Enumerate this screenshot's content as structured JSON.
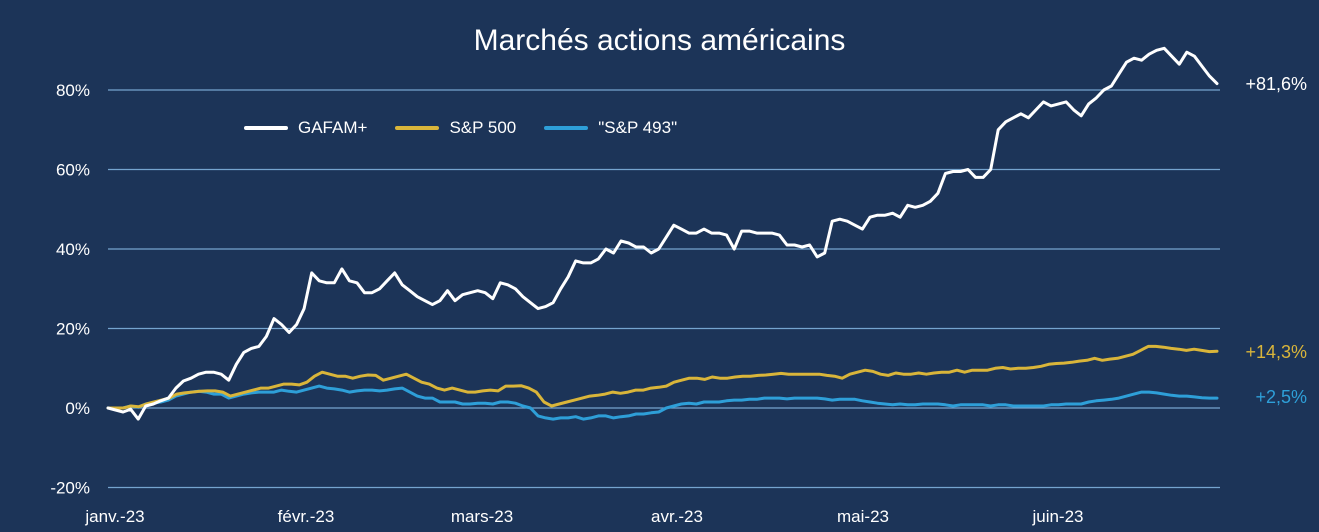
{
  "chart_data": {
    "type": "line",
    "title": "Marchés actions américains",
    "x_tick_labels": [
      "janv.-23",
      "févr.-23",
      "mars-23",
      "avr.-23",
      "mai-23",
      "juin-23"
    ],
    "y_tick_labels": [
      "-20%",
      "0%",
      "20%",
      "40%",
      "60%",
      "80%"
    ],
    "y_ticks": [
      -20,
      0,
      20,
      40,
      60,
      80
    ],
    "ylim": [
      -20,
      88
    ],
    "grid": true,
    "legend_position": "top-left",
    "series": [
      {
        "name": "GAFAM+",
        "color": "#ffffff",
        "end_label": "+81,6%",
        "values": [
          0,
          -0.5,
          -1,
          -0.3,
          -2.8,
          0.5,
          1,
          1.8,
          2.5,
          5,
          6.8,
          7.5,
          8.5,
          9,
          9,
          8.5,
          7,
          11,
          14,
          15,
          15.5,
          18,
          22.5,
          21,
          19,
          21,
          25,
          34,
          32,
          31.5,
          31.5,
          35,
          32,
          31.5,
          29,
          29,
          30,
          32,
          34,
          31,
          29.5,
          28,
          27,
          26,
          27,
          29.5,
          27,
          28.5,
          29,
          29.5,
          29,
          27.5,
          31.5,
          31,
          30,
          28,
          26.5,
          25,
          25.5,
          26.5,
          30,
          33,
          37,
          36.5,
          36.5,
          37.5,
          40,
          39,
          42,
          41.5,
          40.5,
          40.5,
          39,
          40,
          43,
          46,
          45,
          44,
          44,
          45,
          44,
          44,
          43.5,
          40,
          44.5,
          44.5,
          44,
          44,
          44,
          43.5,
          41,
          41,
          40.5,
          41,
          38,
          39,
          47,
          47.5,
          47,
          46,
          45,
          48,
          48.5,
          48.5,
          49,
          48,
          51,
          50.5,
          51,
          52,
          54,
          59,
          59.5,
          59.5,
          60,
          58,
          58,
          60,
          70,
          72,
          73,
          74,
          73,
          75,
          77,
          76,
          76.5,
          77,
          75,
          73.5,
          76.5,
          78,
          80,
          81,
          84,
          87,
          88,
          87.5,
          89,
          90,
          90.5,
          88.5,
          86.5,
          89.5,
          88.5,
          86,
          83.5,
          81.6
        ]
      },
      {
        "name": "S&P 500",
        "color": "#d9b53a",
        "end_label": "+14,3%",
        "values": [
          0,
          0,
          0,
          0.5,
          0.3,
          1,
          1.5,
          2,
          2.5,
          3.5,
          3.8,
          4,
          4.2,
          4.3,
          4.3,
          4,
          3,
          3.5,
          4,
          4.5,
          5,
          5,
          5.5,
          6,
          6,
          5.8,
          6.5,
          8,
          9,
          8.5,
          8,
          8,
          7.5,
          8,
          8.3,
          8.2,
          7,
          7.5,
          8,
          8.5,
          7.5,
          6.5,
          6,
          5,
          4.5,
          5,
          4.5,
          4,
          4,
          4.3,
          4.5,
          4.3,
          5.5,
          5.5,
          5.6,
          5,
          4,
          1.5,
          0.5,
          1,
          1.5,
          2,
          2.5,
          3,
          3.2,
          3.5,
          4,
          3.7,
          4,
          4.5,
          4.5,
          5,
          5.2,
          5.5,
          6.5,
          7,
          7.5,
          7.5,
          7.2,
          7.8,
          7.5,
          7.5,
          7.8,
          8,
          8,
          8.2,
          8.3,
          8.5,
          8.7,
          8.5,
          8.5,
          8.5,
          8.5,
          8.5,
          8.2,
          8,
          7.5,
          8.5,
          9,
          9.5,
          9.2,
          8.5,
          8.2,
          8.8,
          8.5,
          8.5,
          8.8,
          8.5,
          8.8,
          9,
          9,
          9.5,
          9,
          9.5,
          9.5,
          9.5,
          10,
          10.2,
          9.8,
          10,
          10,
          10.2,
          10.5,
          11,
          11.2,
          11.3,
          11.5,
          11.8,
          12,
          12.5,
          12,
          12.3,
          12.5,
          13,
          13.5,
          14.5,
          15.5,
          15.5,
          15.3,
          15,
          14.8,
          14.5,
          14.8,
          14.5,
          14.2,
          14.3
        ]
      },
      {
        "name": "\"S&P 493\"",
        "color": "#2e9fd8",
        "end_label": "+2,5%",
        "values": [
          0,
          0,
          0,
          0.5,
          0.2,
          1,
          1.2,
          1.5,
          2,
          3,
          3.5,
          4,
          4.2,
          4,
          3.5,
          3.5,
          2.5,
          3,
          3.5,
          3.8,
          4,
          4,
          4,
          4.5,
          4.2,
          4,
          4.5,
          5,
          5.5,
          5,
          4.8,
          4.5,
          4,
          4.3,
          4.5,
          4.5,
          4.3,
          4.5,
          4.8,
          5,
          4,
          3,
          2.5,
          2.5,
          1.5,
          1.5,
          1.5,
          1,
          1,
          1.2,
          1.2,
          1,
          1.5,
          1.5,
          1.2,
          0.5,
          0,
          -2,
          -2.5,
          -2.8,
          -2.5,
          -2.5,
          -2.2,
          -2.8,
          -2.5,
          -2,
          -2,
          -2.5,
          -2.2,
          -2,
          -1.5,
          -1.5,
          -1.2,
          -1,
          0,
          0.5,
          1,
          1.2,
          1,
          1.5,
          1.5,
          1.5,
          1.8,
          2,
          2,
          2.2,
          2.2,
          2.5,
          2.5,
          2.5,
          2.3,
          2.5,
          2.5,
          2.5,
          2.5,
          2.3,
          2,
          2.2,
          2.2,
          2.2,
          1.8,
          1.5,
          1.2,
          1,
          0.8,
          1,
          0.8,
          0.8,
          1,
          1,
          1,
          0.8,
          0.5,
          0.8,
          0.8,
          0.8,
          0.8,
          0.5,
          0.8,
          0.8,
          0.5,
          0.5,
          0.5,
          0.5,
          0.5,
          0.8,
          0.8,
          1,
          1,
          1,
          1.5,
          1.8,
          2,
          2.2,
          2.5,
          3,
          3.5,
          4,
          4,
          3.8,
          3.5,
          3.2,
          3,
          3,
          2.8,
          2.6,
          2.5,
          2.5
        ]
      }
    ]
  }
}
